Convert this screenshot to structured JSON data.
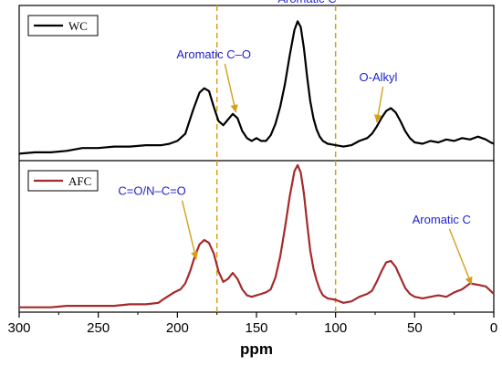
{
  "chart_data": {
    "type": "line",
    "xlabel": "ppm",
    "xlim": [
      300,
      0
    ],
    "x_reversed": true,
    "x_ticks": [
      "300",
      "250",
      "200",
      "150",
      "100",
      "50",
      "0"
    ],
    "x_tick_values": [
      300,
      250,
      200,
      150,
      100,
      50,
      0
    ],
    "reference_lines_ppm": [
      175,
      100
    ],
    "reference_line_color": "#D4A017",
    "annotation_color": "#1F1FCC",
    "arrow_color": "#D4A017",
    "panels": [
      {
        "legend": "WC",
        "color": "#000000",
        "ylim": [
          0,
          1
        ],
        "series": {
          "name": "WC",
          "x": [
            300,
            290,
            280,
            270,
            260,
            250,
            240,
            230,
            220,
            210,
            205,
            200,
            195,
            190,
            186,
            183,
            180,
            177,
            174,
            171,
            168,
            165,
            162,
            159,
            156,
            153,
            150,
            147,
            144,
            141,
            138,
            135,
            132,
            129,
            126,
            124,
            122,
            120,
            118,
            116,
            114,
            112,
            110,
            108,
            105,
            100,
            95,
            90,
            85,
            80,
            77,
            74,
            71,
            68,
            65,
            62,
            59,
            56,
            53,
            50,
            45,
            40,
            35,
            30,
            25,
            20,
            15,
            10,
            5,
            2,
            0
          ],
          "y": [
            0.01,
            0.02,
            0.02,
            0.03,
            0.05,
            0.05,
            0.06,
            0.06,
            0.07,
            0.07,
            0.08,
            0.1,
            0.15,
            0.32,
            0.44,
            0.47,
            0.45,
            0.34,
            0.24,
            0.21,
            0.25,
            0.29,
            0.26,
            0.17,
            0.12,
            0.1,
            0.12,
            0.1,
            0.1,
            0.14,
            0.22,
            0.34,
            0.5,
            0.7,
            0.88,
            0.94,
            0.9,
            0.75,
            0.55,
            0.38,
            0.26,
            0.18,
            0.13,
            0.1,
            0.08,
            0.07,
            0.06,
            0.07,
            0.1,
            0.12,
            0.15,
            0.2,
            0.26,
            0.31,
            0.33,
            0.3,
            0.24,
            0.17,
            0.12,
            0.09,
            0.08,
            0.1,
            0.09,
            0.11,
            0.1,
            0.12,
            0.11,
            0.13,
            0.11,
            0.09,
            0.08
          ]
        },
        "annotations": [
          {
            "text": "Aromatic C–O",
            "arrow_from_ppm": 170,
            "arrow_to_ppm": 163,
            "arrow_to_y": 0.3,
            "label_ppm": 177,
            "label_y": 0.68
          },
          {
            "text": "Aromatic C",
            "label_ppm": 118,
            "label_y": 1.07
          },
          {
            "text": "O-Alkyl",
            "arrow_from_ppm": 70,
            "arrow_to_ppm": 74,
            "arrow_to_y": 0.23,
            "label_ppm": 73,
            "label_y": 0.52
          }
        ]
      },
      {
        "legend": "AFC",
        "color": "#A52A2A",
        "ylim": [
          0,
          1
        ],
        "series": {
          "name": "AFC",
          "x": [
            300,
            290,
            280,
            270,
            260,
            250,
            240,
            230,
            220,
            212,
            208,
            205,
            202,
            198,
            195,
            192,
            189,
            186,
            183,
            180,
            177,
            174,
            171,
            168,
            165,
            162,
            159,
            156,
            153,
            150,
            147,
            144,
            141,
            138,
            135,
            132,
            129,
            126,
            124,
            122,
            120,
            118,
            116,
            114,
            112,
            110,
            108,
            105,
            100,
            95,
            90,
            85,
            80,
            77,
            74,
            71,
            68,
            65,
            62,
            59,
            56,
            53,
            50,
            45,
            40,
            35,
            30,
            25,
            20,
            15,
            10,
            5,
            2,
            0
          ],
          "y": [
            0.02,
            0.02,
            0.02,
            0.03,
            0.03,
            0.03,
            0.03,
            0.04,
            0.04,
            0.05,
            0.08,
            0.1,
            0.12,
            0.14,
            0.18,
            0.26,
            0.36,
            0.44,
            0.47,
            0.45,
            0.38,
            0.26,
            0.19,
            0.21,
            0.25,
            0.21,
            0.14,
            0.1,
            0.09,
            0.1,
            0.11,
            0.12,
            0.14,
            0.22,
            0.36,
            0.55,
            0.76,
            0.93,
            0.97,
            0.92,
            0.78,
            0.58,
            0.4,
            0.28,
            0.2,
            0.14,
            0.1,
            0.08,
            0.07,
            0.05,
            0.06,
            0.09,
            0.11,
            0.13,
            0.19,
            0.26,
            0.32,
            0.33,
            0.29,
            0.22,
            0.15,
            0.11,
            0.09,
            0.08,
            0.09,
            0.1,
            0.09,
            0.12,
            0.14,
            0.18,
            0.17,
            0.16,
            0.13,
            0.11
          ]
        },
        "annotations": [
          {
            "text": "C=O/N–C=O",
            "arrow_from_ppm": 197,
            "arrow_to_ppm": 188,
            "arrow_to_y": 0.34,
            "label_ppm": 216,
            "label_y": 0.77
          },
          {
            "text": "Aromatic C",
            "arrow_from_ppm": 28,
            "arrow_to_ppm": 14,
            "arrow_to_y": 0.17,
            "label_ppm": 33,
            "label_y": 0.58
          }
        ]
      }
    ]
  }
}
